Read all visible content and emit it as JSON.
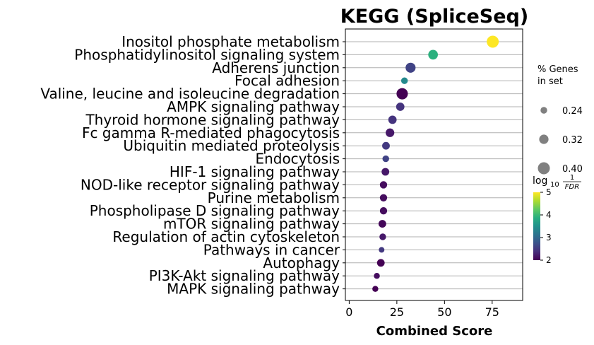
{
  "chart_data": {
    "type": "scatter",
    "title": "KEGG (SpliceSeq)",
    "xlabel": "Combined Score",
    "xlim": [
      -2,
      91
    ],
    "xticks": [
      0,
      25,
      50,
      75
    ],
    "grid": "horizontal",
    "categories": [
      "Inositol phosphate metabolism",
      "Phosphatidylinositol signaling system",
      "Adherens junction",
      "Focal adhesion",
      "Valine, leucine and isoleucine degradation",
      "AMPK signaling pathway",
      "Thyroid hormone signaling pathway",
      "Fc gamma R-mediated phagocytosis",
      "Ubiquitin mediated proteolysis",
      "Endocytosis",
      "HIF-1 signaling pathway",
      "NOD-like receptor signaling pathway",
      "Purine metabolism",
      "Phospholipase D signaling pathway",
      "mTOR signaling pathway",
      "Regulation of actin cytoskeleton",
      "Pathways in cancer",
      "Autophagy",
      "PI3K-Akt signaling pathway",
      "MAPK signaling pathway"
    ],
    "points": [
      {
        "term": "Inositol phosphate metabolism",
        "combined_score": 75.3,
        "pct_genes": 0.4,
        "log10_inv_fdr": 5.0
      },
      {
        "term": "Phosphatidylinositol signaling system",
        "combined_score": 44.0,
        "pct_genes": 0.33,
        "log10_inv_fdr": 3.9
      },
      {
        "term": "Adherens junction",
        "combined_score": 32.2,
        "pct_genes": 0.34,
        "log10_inv_fdr": 2.6
      },
      {
        "term": "Focal adhesion",
        "combined_score": 29.0,
        "pct_genes": 0.24,
        "log10_inv_fdr": 3.4
      },
      {
        "term": "Valine, leucine and isoleucine degradation",
        "combined_score": 27.8,
        "pct_genes": 0.38,
        "log10_inv_fdr": 2.0
      },
      {
        "term": "AMPK signaling pathway",
        "combined_score": 26.8,
        "pct_genes": 0.29,
        "log10_inv_fdr": 2.45
      },
      {
        "term": "Thyroid hormone signaling pathway",
        "combined_score": 22.7,
        "pct_genes": 0.29,
        "log10_inv_fdr": 2.45
      },
      {
        "term": "Fc gamma R-mediated phagocytosis",
        "combined_score": 21.4,
        "pct_genes": 0.3,
        "log10_inv_fdr": 2.2
      },
      {
        "term": "Ubiquitin mediated proteolysis",
        "combined_score": 19.3,
        "pct_genes": 0.27,
        "log10_inv_fdr": 2.5
      },
      {
        "term": "Endocytosis",
        "combined_score": 19.2,
        "pct_genes": 0.24,
        "log10_inv_fdr": 2.6
      },
      {
        "term": "HIF-1 signaling pathway",
        "combined_score": 19.0,
        "pct_genes": 0.27,
        "log10_inv_fdr": 2.2
      },
      {
        "term": "NOD-like receptor signaling pathway",
        "combined_score": 18.0,
        "pct_genes": 0.26,
        "log10_inv_fdr": 2.1
      },
      {
        "term": "Purine metabolism",
        "combined_score": 18.0,
        "pct_genes": 0.26,
        "log10_inv_fdr": 2.1
      },
      {
        "term": "Phospholipase D signaling pathway",
        "combined_score": 18.0,
        "pct_genes": 0.26,
        "log10_inv_fdr": 2.1
      },
      {
        "term": "mTOR signaling pathway",
        "combined_score": 17.4,
        "pct_genes": 0.27,
        "log10_inv_fdr": 2.05
      },
      {
        "term": "Regulation of actin cytoskeleton",
        "combined_score": 17.6,
        "pct_genes": 0.24,
        "log10_inv_fdr": 2.2
      },
      {
        "term": "Pathways in cancer",
        "combined_score": 17.0,
        "pct_genes": 0.21,
        "log10_inv_fdr": 2.5
      },
      {
        "term": "Autophagy",
        "combined_score": 16.6,
        "pct_genes": 0.27,
        "log10_inv_fdr": 2.0
      },
      {
        "term": "PI3K-Akt signaling pathway",
        "combined_score": 14.5,
        "pct_genes": 0.22,
        "log10_inv_fdr": 2.1
      },
      {
        "term": "MAPK signaling pathway",
        "combined_score": 13.7,
        "pct_genes": 0.22,
        "log10_inv_fdr": 2.0
      }
    ],
    "size_legend": {
      "title_line1": "% Genes",
      "title_line2": "in set",
      "items": [
        {
          "label": "0.24",
          "value": 0.24
        },
        {
          "label": "0.32",
          "value": 0.32
        },
        {
          "label": "0.40",
          "value": 0.4
        }
      ],
      "marker_color": "#808080"
    },
    "colorbar": {
      "label_log": "log",
      "label_sub": "10",
      "label_num": "1",
      "label_den": "FDR",
      "ticks": [
        "2",
        "3",
        "4",
        "5"
      ],
      "tick_values": [
        2,
        3,
        4,
        5
      ],
      "range": [
        2,
        5
      ],
      "colormap": "viridis"
    },
    "grid_color": "#b0b0b0"
  }
}
